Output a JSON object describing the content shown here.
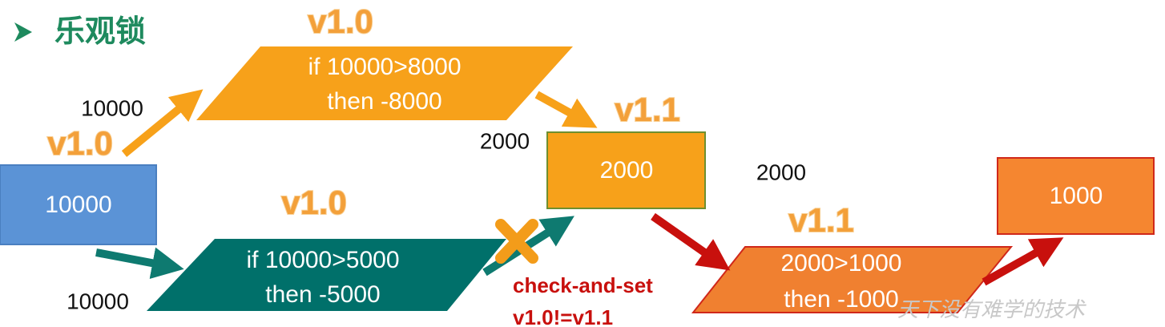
{
  "header": {
    "title": "乐观锁"
  },
  "nodes": [
    {
      "label": [
        "10000"
      ]
    },
    {
      "label": [
        "if 10000>8000",
        "then -8000"
      ]
    },
    {
      "label": [
        "if 10000>5000",
        "then -5000"
      ]
    },
    {
      "label": [
        "2000"
      ]
    },
    {
      "label": [
        "2000>1000",
        "then -1000"
      ]
    },
    {
      "label": [
        "1000"
      ]
    }
  ],
  "versions": [
    "v1.0",
    "v1.0",
    "v1.0",
    "v1.1",
    "v1.1"
  ],
  "values": [
    "10000",
    "10000",
    "2000",
    "2000"
  ],
  "conflict": [
    "check-and-set",
    "v1.0!=v1.1"
  ],
  "watermark": "天下没有难学的技术"
}
